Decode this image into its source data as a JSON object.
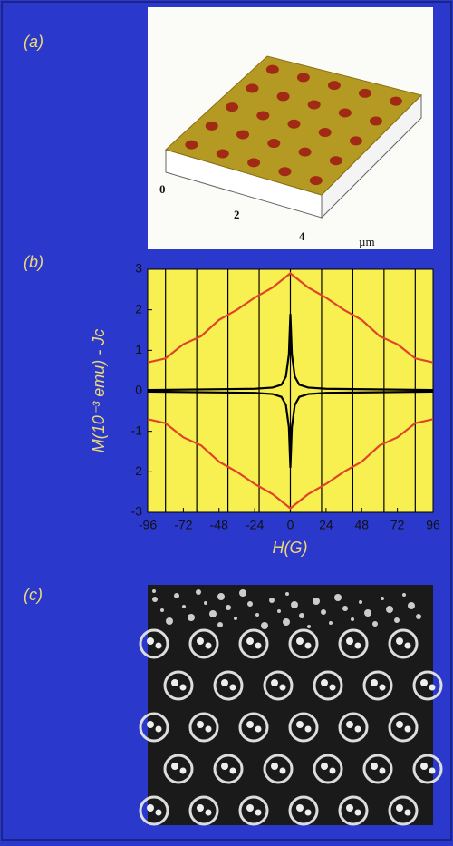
{
  "panel_labels": [
    "(a)",
    "(b)",
    "(c)"
  ],
  "afm_axis_labels": [
    "0",
    "2",
    "4",
    "µm"
  ],
  "chart_data": {
    "type": "line",
    "x_label": "H(G)",
    "y_label": "M(10⁻³ emu) - Jc",
    "xlim": [
      -96,
      96
    ],
    "xticks": [
      -96,
      -72,
      -48,
      -24,
      0,
      24,
      48,
      72,
      96
    ],
    "ylim": [
      -3,
      3
    ],
    "yticks": [
      -3,
      -2,
      -1,
      0,
      1,
      2,
      3
    ],
    "vlines": [
      -84,
      -63,
      -42,
      -21,
      0,
      21,
      42,
      63,
      84
    ],
    "background": "#f8f050",
    "series": [
      {
        "color": "#e04428",
        "x": [
          -96,
          -84,
          -72,
          -60,
          -48,
          -36,
          -24,
          -12,
          0,
          12,
          24,
          36,
          48,
          60,
          72,
          84,
          96
        ],
        "values": [
          0.7,
          0.8,
          1.15,
          1.35,
          1.75,
          2.0,
          2.3,
          2.55,
          2.9,
          2.55,
          2.3,
          2.0,
          1.75,
          1.35,
          1.15,
          0.8,
          0.7
        ]
      },
      {
        "color": "#e04428",
        "x": [
          -96,
          -84,
          -72,
          -60,
          -48,
          -36,
          -24,
          -12,
          0,
          12,
          24,
          36,
          48,
          60,
          72,
          84,
          96
        ],
        "values": [
          -0.7,
          -0.8,
          -1.15,
          -1.35,
          -1.75,
          -2.0,
          -2.3,
          -2.55,
          -2.9,
          -2.55,
          -2.3,
          -2.0,
          -1.75,
          -1.35,
          -1.15,
          -0.8,
          -0.7
        ]
      },
      {
        "color": "#000000",
        "x": [
          -96,
          -24,
          -12,
          -6,
          -3,
          -1,
          0,
          1,
          3,
          6,
          12,
          24,
          96
        ],
        "values": [
          0.02,
          0.05,
          0.08,
          0.15,
          0.35,
          0.9,
          1.9,
          0.9,
          0.35,
          0.15,
          0.08,
          0.05,
          0.02
        ]
      },
      {
        "color": "#000000",
        "x": [
          -96,
          -24,
          -12,
          -6,
          -3,
          -1,
          0,
          1,
          3,
          6,
          12,
          24,
          96
        ],
        "values": [
          -0.02,
          -0.05,
          -0.08,
          -0.15,
          -0.35,
          -0.9,
          -1.9,
          -0.9,
          -0.35,
          -0.15,
          -0.08,
          -0.05,
          -0.02
        ]
      }
    ]
  }
}
